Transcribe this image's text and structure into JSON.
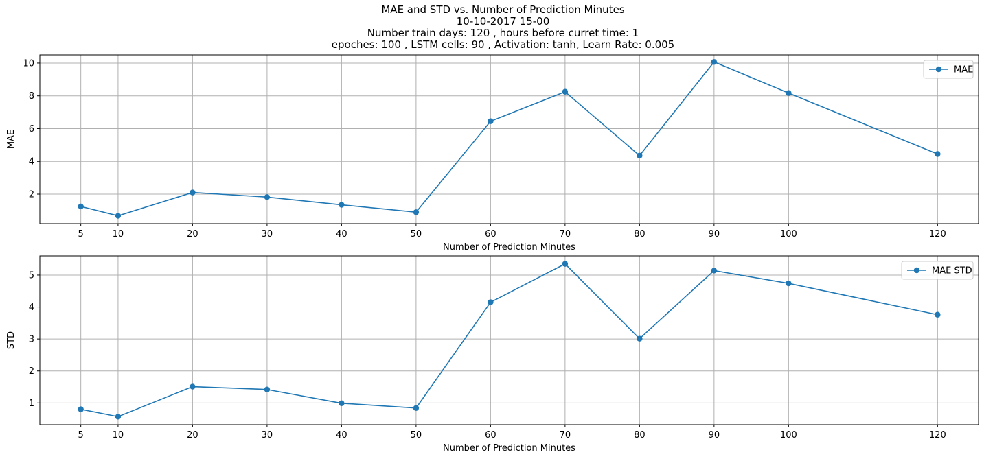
{
  "figure": {
    "title_lines": [
      "MAE and STD vs. Number of Prediction Minutes",
      "10-10-2017 15-00",
      "Number train days: 120 , hours before curret time: 1",
      "epoches: 100 , LSTM cells: 90 , Activation: tanh, Learn Rate: 0.005"
    ]
  },
  "colors": {
    "series": "#1f77b4",
    "grid": "#b0b0b0",
    "axes": "#000000"
  },
  "chart_data": [
    {
      "type": "line",
      "x": [
        5,
        10,
        20,
        30,
        40,
        50,
        60,
        70,
        80,
        90,
        100,
        120
      ],
      "series": [
        {
          "name": "MAE",
          "values": [
            1.25,
            0.68,
            2.1,
            1.82,
            1.35,
            0.9,
            6.45,
            8.25,
            4.35,
            10.07,
            8.17,
            4.45
          ]
        }
      ],
      "xlabel": "Number of Prediction Minutes",
      "ylabel": "MAE",
      "xticks": [
        5,
        10,
        20,
        30,
        40,
        50,
        60,
        70,
        80,
        90,
        100,
        120
      ],
      "yticks": [
        2,
        4,
        6,
        8,
        10
      ],
      "xlim": [
        -0.5,
        125.5
      ],
      "ylim": [
        0.2,
        10.5
      ],
      "grid": true,
      "marker": "circle",
      "legend": "upper-right"
    },
    {
      "type": "line",
      "x": [
        5,
        10,
        20,
        30,
        40,
        50,
        60,
        70,
        80,
        90,
        100,
        120
      ],
      "series": [
        {
          "name": "MAE STD",
          "values": [
            0.8,
            0.57,
            1.51,
            1.42,
            0.99,
            0.84,
            4.15,
            5.35,
            3.01,
            5.14,
            4.74,
            3.76
          ]
        }
      ],
      "xlabel": "Number of Prediction Minutes",
      "ylabel": "STD",
      "xticks": [
        5,
        10,
        20,
        30,
        40,
        50,
        60,
        70,
        80,
        90,
        100,
        120
      ],
      "yticks": [
        1,
        2,
        3,
        4,
        5
      ],
      "xlim": [
        -0.5,
        125.5
      ],
      "ylim": [
        0.32,
        5.6
      ],
      "grid": true,
      "marker": "circle",
      "legend": "upper-right"
    }
  ]
}
